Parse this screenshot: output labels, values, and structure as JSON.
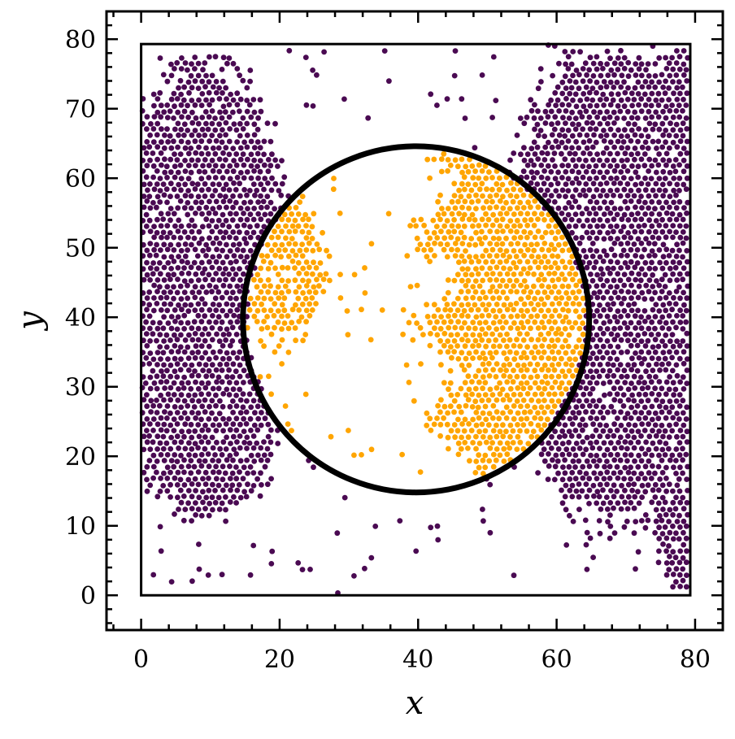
{
  "chart_data": {
    "type": "scatter",
    "title": "",
    "xlabel": "x",
    "ylabel": "y",
    "xlim": [
      -5,
      84
    ],
    "ylim": [
      -5,
      84
    ],
    "x_ticks": [
      0,
      20,
      40,
      60,
      80
    ],
    "y_ticks": [
      0,
      10,
      20,
      30,
      40,
      50,
      60,
      70,
      80
    ],
    "x_tick_labels": [
      "0",
      "20",
      "40",
      "60",
      "80"
    ],
    "y_tick_labels": [
      "0",
      "10",
      "20",
      "30",
      "40",
      "50",
      "60",
      "70",
      "80"
    ],
    "grid": false,
    "legend": "none",
    "colors": {
      "outside": "#4a0a52",
      "inside": "#ffa500",
      "circle": "#000000",
      "box": "#000000"
    },
    "box": {
      "x0": 0,
      "y0": 0,
      "x1": 79.3,
      "y1": 79.3
    },
    "circle": {
      "cx": 39.7,
      "cy": 39.7,
      "r": 25
    },
    "clusters": [
      {
        "name": "outside",
        "shape": "ellipse",
        "cx": 10,
        "cy": 45,
        "rx": 11,
        "ry": 30,
        "density": 0.92
      },
      {
        "name": "outside",
        "shape": "ellipse",
        "cx": 68,
        "cy": 45,
        "rx": 14,
        "ry": 32,
        "density": 0.92
      },
      {
        "name": "inside",
        "shape": "disk-half",
        "cx": 50,
        "cy": 40,
        "r": 15,
        "density": 0.9
      },
      {
        "name": "inside",
        "shape": "ellipse",
        "cx": 20,
        "cy": 45,
        "rx": 5,
        "ry": 10,
        "density": 0.55
      }
    ]
  }
}
